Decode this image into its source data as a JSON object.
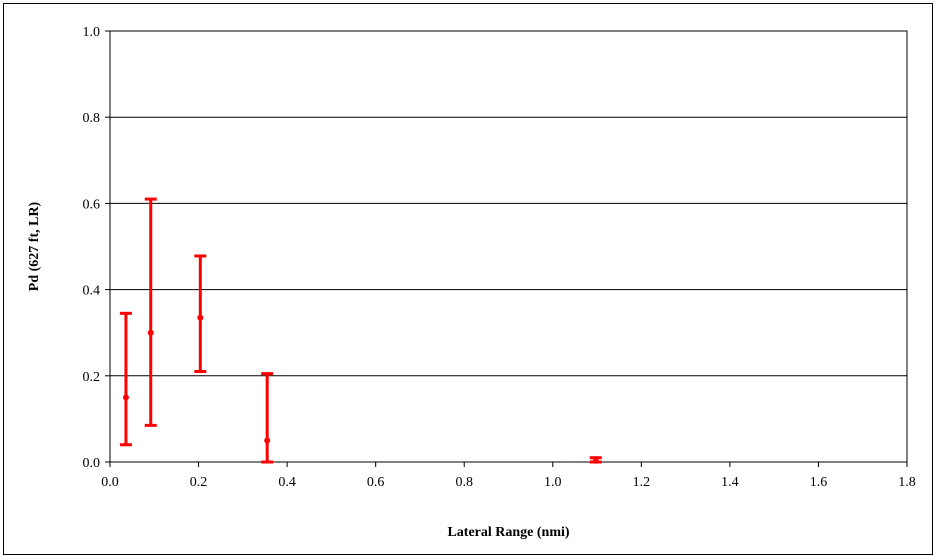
{
  "chart_data": {
    "type": "scatter",
    "title": "",
    "xlabel": "Lateral Range (nmi)",
    "ylabel": "Pd (627 ft, LR)",
    "xlim": [
      0,
      1.8
    ],
    "ylim": [
      0,
      1.0
    ],
    "x_ticks": [
      "0.0",
      "0.2",
      "0.4",
      "0.6",
      "0.8",
      "1.0",
      "1.2",
      "1.4",
      "1.6",
      "1.8"
    ],
    "y_ticks": [
      "0.0",
      "0.2",
      "0.4",
      "0.6",
      "0.8",
      "1.0"
    ],
    "grid": "horizontal",
    "series_color": "#ff0000",
    "points": [
      {
        "x": 0.036,
        "y": 0.15,
        "low": 0.04,
        "high": 0.345
      },
      {
        "x": 0.092,
        "y": 0.3,
        "low": 0.085,
        "high": 0.61
      },
      {
        "x": 0.204,
        "y": 0.335,
        "low": 0.21,
        "high": 0.478
      },
      {
        "x": 0.355,
        "y": 0.05,
        "low": 0.0,
        "high": 0.205
      },
      {
        "x": 1.097,
        "y": 0.003,
        "low": 0.0,
        "high": 0.01
      }
    ]
  }
}
